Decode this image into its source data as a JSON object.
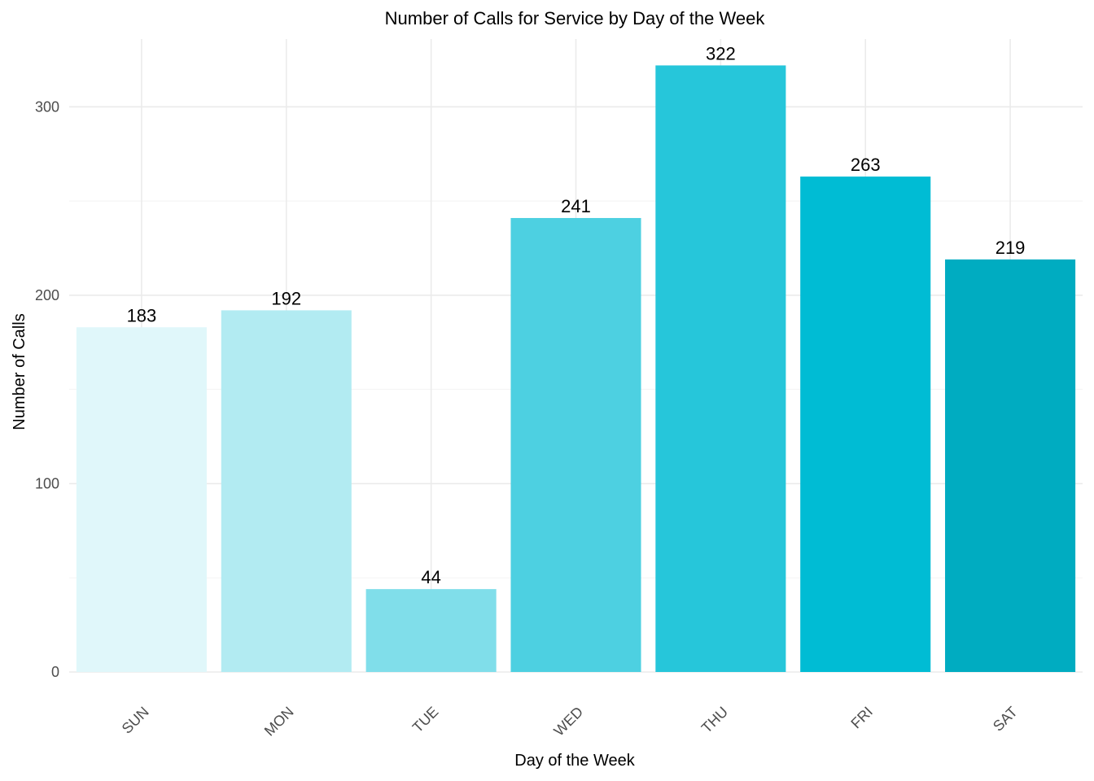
{
  "chart_data": {
    "type": "bar",
    "title": "Number of Calls for Service by Day of the Week",
    "xlabel": "Day of the Week",
    "ylabel": "Number of Calls",
    "categories": [
      "SUN",
      "MON",
      "TUE",
      "WED",
      "THU",
      "FRI",
      "SAT"
    ],
    "values": [
      183,
      192,
      44,
      241,
      322,
      263,
      219
    ],
    "data_labels": [
      "183",
      "192",
      "44",
      "241",
      "322",
      "263",
      "219"
    ],
    "bar_colors": [
      "#e0f7fa",
      "#b2ebf2",
      "#80deea",
      "#4dd0e1",
      "#26c6da",
      "#00bcd4",
      "#00acc1"
    ],
    "ylim": [
      0,
      336
    ],
    "y_ticks": [
      0,
      100,
      200,
      300
    ],
    "y_tick_labels": [
      "0",
      "100",
      "200",
      "300"
    ],
    "y_minor_ticks": [
      50,
      150,
      250
    ],
    "grid": true,
    "legend": "none",
    "x_tick_rotation": 45
  }
}
